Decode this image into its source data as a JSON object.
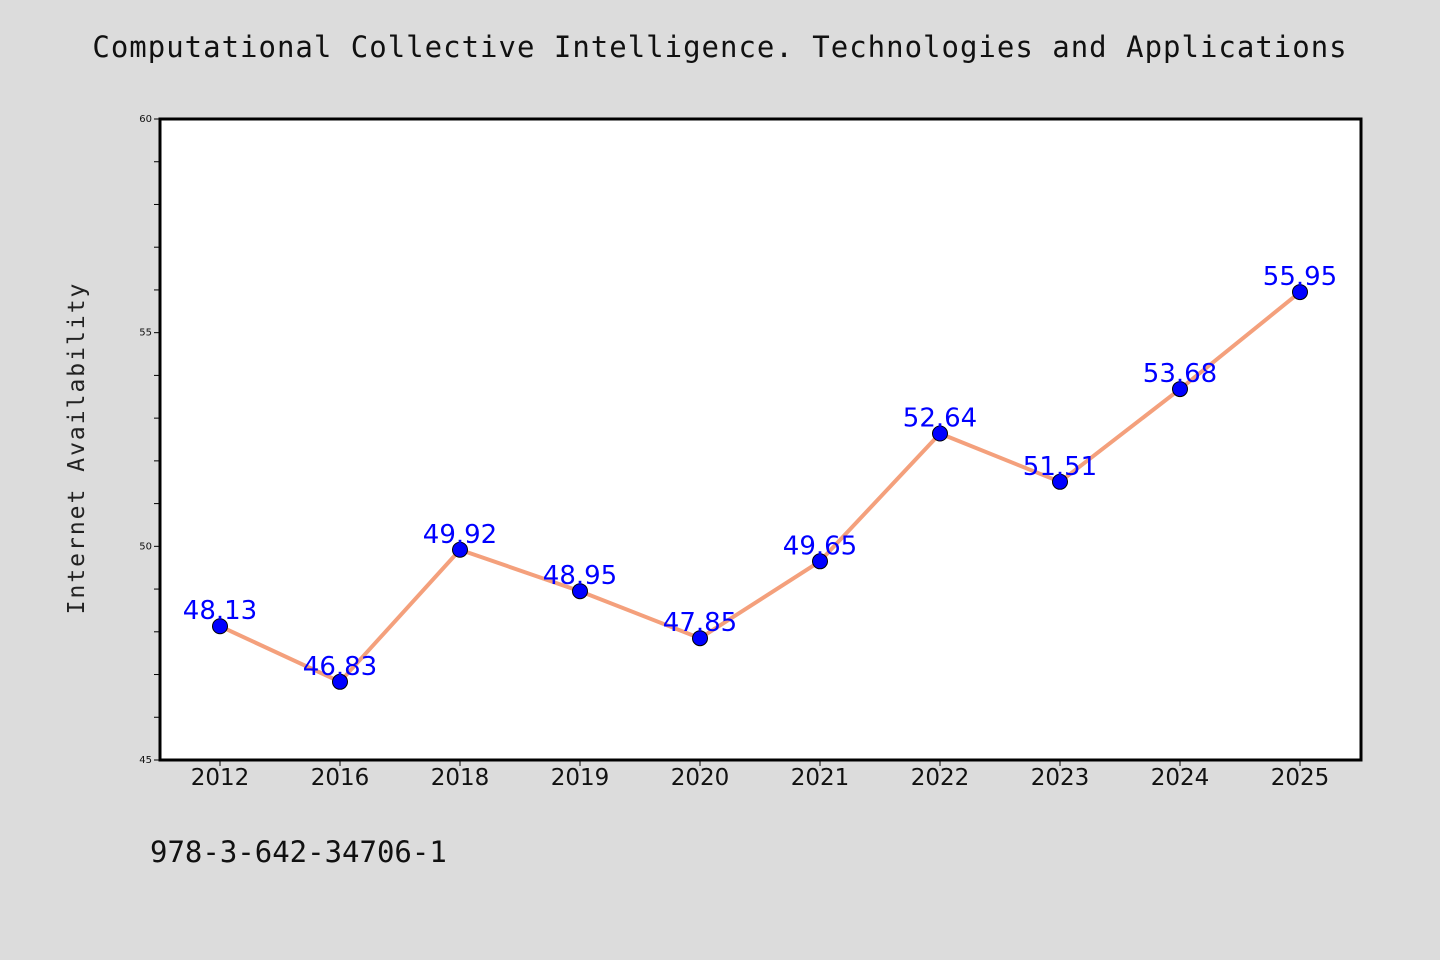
{
  "chart_data": {
    "type": "line",
    "title": "Computational Collective Intelligence. Technologies and Applications",
    "xlabel": "",
    "ylabel": "Internet Availability",
    "categories": [
      "2012",
      "2016",
      "2018",
      "2019",
      "2020",
      "2021",
      "2022",
      "2023",
      "2024",
      "2025"
    ],
    "series": [
      {
        "values": [
          48.13,
          46.83,
          49.92,
          48.95,
          47.85,
          49.65,
          52.64,
          51.51,
          53.68,
          55.95
        ],
        "line_color": "#f4a07c",
        "marker_color": "#0000ff"
      }
    ],
    "data_labels": [
      "48.13",
      "46.83",
      "49.92",
      "48.95",
      "47.85",
      "49.65",
      "52.64",
      "51.51",
      "53.68",
      "55.95"
    ],
    "ylim": [
      45,
      60
    ],
    "yticks": [
      "45",
      "50",
      "55",
      "60"
    ],
    "grid": false,
    "legend": "none"
  },
  "footer": {
    "isbn": "978-3-642-34706-1"
  },
  "colors": {
    "background": "#dcdcdc",
    "plot_background": "#ffffff",
    "line": "#f4a07c",
    "marker": "#0000ff",
    "data_label": "#0000ff"
  }
}
